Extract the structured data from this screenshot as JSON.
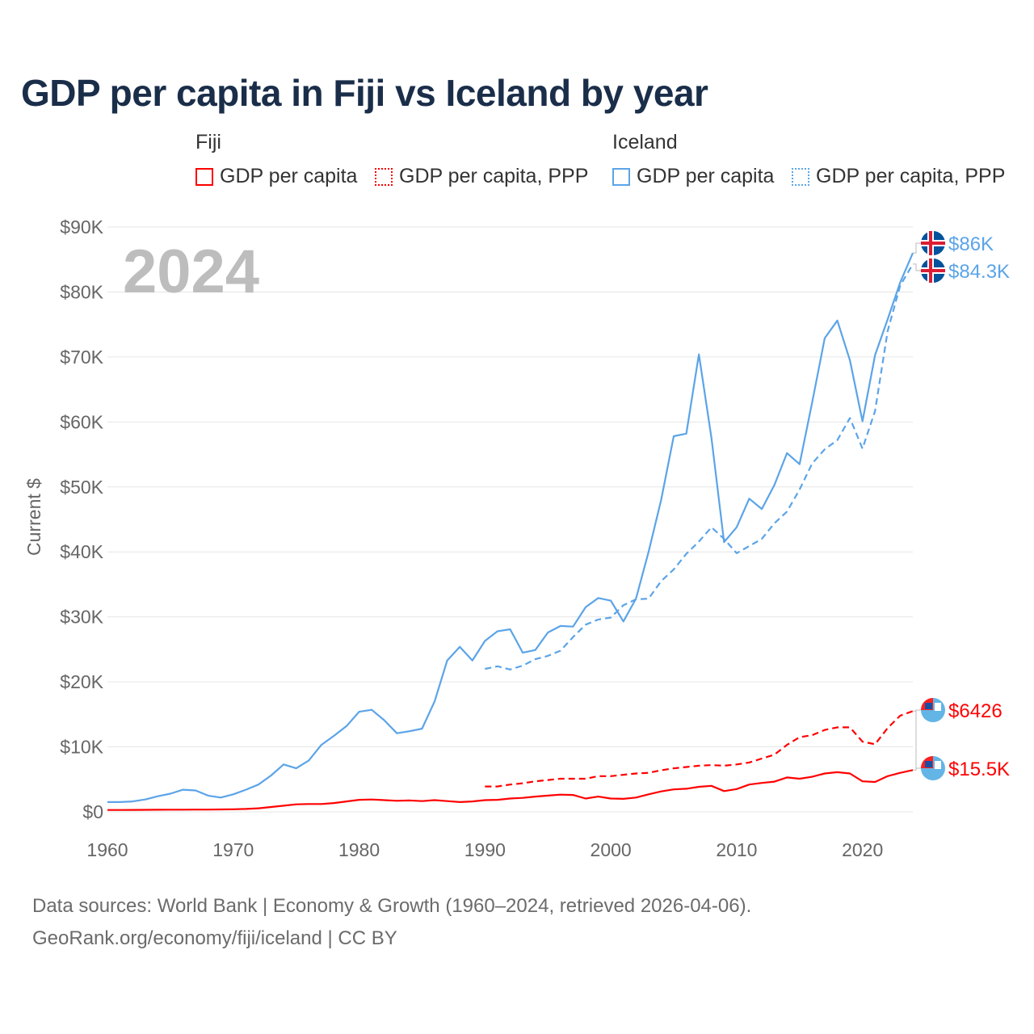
{
  "title": "GDP per capita in Fiji vs Iceland by year",
  "legend": {
    "groups": [
      "Fiji",
      "Iceland"
    ],
    "items": [
      {
        "label": "GDP per capita",
        "color": "#ff0000",
        "style": "solid"
      },
      {
        "label": "GDP per capita, PPP",
        "color": "#ff0000",
        "style": "dotted"
      },
      {
        "label": "GDP per capita",
        "color": "#5ba4e8",
        "style": "solid"
      },
      {
        "label": "GDP per capita, PPP",
        "color": "#5ba4e8",
        "style": "dotted"
      }
    ]
  },
  "footer": {
    "line1": "Data sources: World Bank | Economy & Growth (1960–2024, retrieved 2026-04-06).",
    "line2": "GeoRank.org/economy/fiji/iceland | CC BY"
  },
  "chart_data": {
    "type": "line",
    "title": "GDP per capita in Fiji vs Iceland by year",
    "ylabel": "Current $",
    "xlabel": "",
    "current_year_label": "2024",
    "xlim": [
      1960,
      2024
    ],
    "ylim": [
      0,
      90000
    ],
    "x_ticks": [
      1960,
      1970,
      1980,
      1990,
      2000,
      2010,
      2020
    ],
    "y_ticks": [
      0,
      10000,
      20000,
      30000,
      40000,
      50000,
      60000,
      70000,
      80000,
      90000
    ],
    "y_tick_labels": [
      "$0",
      "$10K",
      "$20K",
      "$30K",
      "$40K",
      "$50K",
      "$60K",
      "$70K",
      "$80K",
      "$90K"
    ],
    "grid": true,
    "series": [
      {
        "name": "Iceland GDP per capita",
        "color": "#5ba4e8",
        "dash": "none",
        "start": 1960,
        "end_label": "$86K",
        "values": [
          1.5,
          1.5,
          1.6,
          1.9,
          2.4,
          2.8,
          3.4,
          3.3,
          2.5,
          2.2,
          2.7,
          3.4,
          4.2,
          5.6,
          7.3,
          6.7,
          7.9,
          10.3,
          11.7,
          13.2,
          15.4,
          15.7,
          14.1,
          12.1,
          12.4,
          12.8,
          17.0,
          23.3,
          25.4,
          23.3,
          26.3,
          27.8,
          28.1,
          24.5,
          24.9,
          27.6,
          28.6,
          28.5,
          31.5,
          32.9,
          32.5,
          29.3,
          32.8,
          40.0,
          48.0,
          57.8,
          58.2,
          70.4,
          57.5,
          41.5,
          43.8,
          48.2,
          46.6,
          50.3,
          55.2,
          53.5,
          63.0,
          72.9,
          75.6,
          69.5,
          60.1,
          70.3,
          75.8,
          81.5,
          86.0
        ]
      },
      {
        "name": "Iceland GDP per capita, PPP",
        "color": "#5ba4e8",
        "dash": "8,5",
        "start": 1990,
        "end_label": "$84.3K",
        "values": [
          22.0,
          22.4,
          21.9,
          22.5,
          23.5,
          24.0,
          24.8,
          26.9,
          28.8,
          29.6,
          29.9,
          31.8,
          32.7,
          32.8,
          35.5,
          37.3,
          39.7,
          41.6,
          43.8,
          42.0,
          39.8,
          40.9,
          42.0,
          44.4,
          46.2,
          49.6,
          53.6,
          55.8,
          57.2,
          60.6,
          55.9,
          61.7,
          74.0,
          81.0,
          84.3
        ]
      },
      {
        "name": "Fiji GDP per capita",
        "color": "#ff0000",
        "dash": "none",
        "start": 1960,
        "end_label": "$6426",
        "values": [
          0.28,
          0.29,
          0.3,
          0.31,
          0.32,
          0.33,
          0.34,
          0.35,
          0.35,
          0.37,
          0.4,
          0.45,
          0.55,
          0.75,
          0.95,
          1.15,
          1.2,
          1.2,
          1.35,
          1.6,
          1.85,
          1.9,
          1.8,
          1.7,
          1.75,
          1.65,
          1.8,
          1.65,
          1.5,
          1.6,
          1.8,
          1.85,
          2.05,
          2.15,
          2.35,
          2.5,
          2.65,
          2.6,
          2.05,
          2.35,
          2.05,
          2.0,
          2.2,
          2.7,
          3.15,
          3.45,
          3.55,
          3.85,
          4.0,
          3.2,
          3.5,
          4.2,
          4.45,
          4.65,
          5.3,
          5.1,
          5.4,
          5.9,
          6.1,
          5.9,
          4.7,
          4.6,
          5.5,
          6.0,
          6.426
        ]
      },
      {
        "name": "Fiji GDP per capita, PPP",
        "color": "#ff0000",
        "dash": "8,5",
        "start": 1990,
        "end_label": "$15.5K",
        "values": [
          3.9,
          3.9,
          4.2,
          4.4,
          4.7,
          4.9,
          5.1,
          5.1,
          5.1,
          5.5,
          5.5,
          5.7,
          5.9,
          6.0,
          6.4,
          6.7,
          6.9,
          7.1,
          7.2,
          7.1,
          7.3,
          7.6,
          8.2,
          8.8,
          10.3,
          11.5,
          11.8,
          12.6,
          13.0,
          13.0,
          10.8,
          10.4,
          12.9,
          14.8,
          15.5
        ]
      }
    ],
    "value_unit": "thousand USD"
  }
}
